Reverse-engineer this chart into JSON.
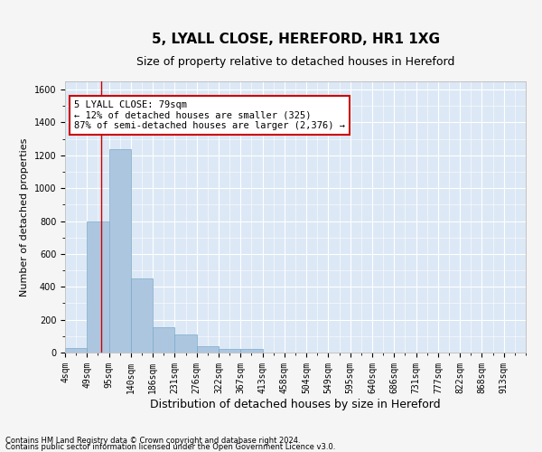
{
  "title": "5, LYALL CLOSE, HEREFORD, HR1 1XG",
  "subtitle": "Size of property relative to detached houses in Hereford",
  "xlabel": "Distribution of detached houses by size in Hereford",
  "ylabel": "Number of detached properties",
  "footnote1": "Contains HM Land Registry data © Crown copyright and database right 2024.",
  "footnote2": "Contains public sector information licensed under the Open Government Licence v3.0.",
  "bin_labels": [
    "4sqm",
    "49sqm",
    "95sqm",
    "140sqm",
    "186sqm",
    "231sqm",
    "276sqm",
    "322sqm",
    "367sqm",
    "413sqm",
    "458sqm",
    "504sqm",
    "549sqm",
    "595sqm",
    "640sqm",
    "686sqm",
    "731sqm",
    "777sqm",
    "822sqm",
    "868sqm",
    "913sqm"
  ],
  "bar_values": [
    30,
    800,
    1240,
    450,
    155,
    110,
    40,
    20,
    20,
    0,
    0,
    0,
    0,
    0,
    0,
    0,
    0,
    0,
    0,
    0
  ],
  "bar_color": "#adc6e0",
  "bar_edge_color": "#7aaac8",
  "property_sqm": 79,
  "annotation_text": "5 LYALL CLOSE: 79sqm\n← 12% of detached houses are smaller (325)\n87% of semi-detached houses are larger (2,376) →",
  "annotation_box_facecolor": "#ffffff",
  "annotation_box_edgecolor": "#cc0000",
  "ylim": [
    0,
    1650
  ],
  "yticks": [
    0,
    200,
    400,
    600,
    800,
    1000,
    1200,
    1400,
    1600
  ],
  "bg_color": "#dce8f5",
  "grid_color": "#ffffff",
  "fig_facecolor": "#f5f5f5",
  "title_fontsize": 11,
  "subtitle_fontsize": 9,
  "xlabel_fontsize": 9,
  "ylabel_fontsize": 8,
  "tick_fontsize": 7,
  "annotation_fontsize": 7.5,
  "footnote_fontsize": 6
}
